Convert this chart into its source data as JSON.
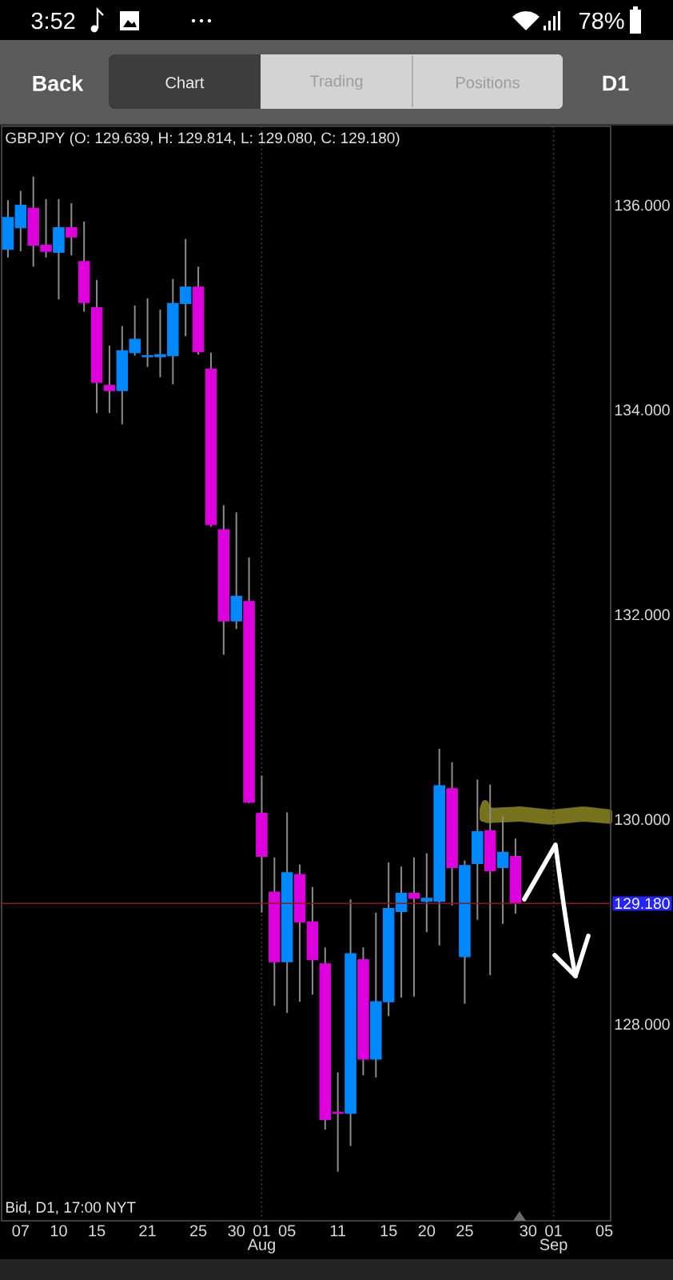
{
  "chart_data": {
    "type": "candlestick",
    "title": "GBPJPY (O: 129.639, H: 129.814, L: 129.080, C: 129.180)",
    "categories": [
      null,
      "07",
      null,
      null,
      "10",
      null,
      null,
      "15",
      null,
      null,
      null,
      "21",
      null,
      null,
      null,
      "25",
      null,
      null,
      "30",
      null,
      "01 Aug",
      null,
      "05",
      null,
      null,
      null,
      "11",
      null,
      null,
      null,
      "15",
      null,
      null,
      "20",
      null,
      null,
      "25",
      null,
      null,
      null,
      null,
      "30",
      null,
      "01 Sep",
      null,
      null,
      null,
      "05"
    ],
    "ohlc": [
      [
        135.57,
        136.05,
        135.49,
        135.88
      ],
      [
        135.78,
        136.14,
        135.55,
        136.0
      ],
      [
        135.97,
        136.28,
        135.4,
        135.61
      ],
      [
        135.61,
        136.06,
        135.49,
        135.55
      ],
      [
        135.54,
        136.06,
        135.08,
        135.78
      ],
      [
        135.78,
        136.02,
        135.51,
        135.69
      ],
      [
        135.45,
        135.84,
        134.96,
        135.05
      ],
      [
        135.0,
        135.27,
        133.97,
        134.27
      ],
      [
        134.24,
        134.63,
        133.97,
        134.19
      ],
      [
        134.19,
        134.82,
        133.86,
        134.58
      ],
      [
        134.56,
        135.02,
        134.53,
        134.69
      ],
      [
        134.52,
        135.09,
        134.42,
        134.53
      ],
      [
        134.52,
        134.98,
        134.32,
        134.54
      ],
      [
        134.53,
        135.28,
        134.25,
        135.04
      ],
      [
        135.04,
        135.67,
        134.72,
        135.2
      ],
      [
        135.2,
        135.4,
        134.54,
        134.57
      ],
      [
        134.4,
        134.56,
        132.86,
        132.88
      ],
      [
        132.83,
        133.07,
        131.61,
        131.94
      ],
      [
        131.94,
        133.0,
        131.86,
        132.18
      ],
      [
        132.13,
        132.56,
        130.16,
        130.17
      ],
      [
        130.06,
        130.43,
        129.09,
        129.64
      ],
      [
        129.29,
        129.63,
        128.18,
        128.61
      ],
      [
        128.61,
        130.07,
        128.11,
        129.48
      ],
      [
        129.46,
        129.56,
        128.22,
        129.0
      ],
      [
        129.0,
        129.34,
        128.29,
        128.63
      ],
      [
        128.59,
        128.75,
        126.97,
        127.07
      ],
      [
        127.14,
        127.53,
        126.56,
        127.13
      ],
      [
        127.13,
        129.22,
        126.81,
        128.69
      ],
      [
        128.63,
        128.75,
        127.5,
        127.66
      ],
      [
        127.66,
        129.09,
        127.48,
        128.22
      ],
      [
        128.22,
        129.58,
        128.08,
        129.13
      ],
      [
        129.1,
        129.54,
        128.26,
        129.28
      ],
      [
        129.28,
        129.63,
        128.27,
        129.23
      ],
      [
        129.2,
        129.67,
        128.9,
        129.23
      ],
      [
        129.2,
        130.69,
        128.77,
        130.33
      ],
      [
        130.3,
        130.56,
        129.16,
        129.53
      ],
      [
        128.66,
        129.6,
        128.2,
        129.55
      ],
      [
        129.57,
        130.39,
        129.02,
        129.88
      ],
      [
        129.89,
        130.34,
        128.48,
        129.5
      ],
      [
        129.53,
        130.03,
        128.98,
        129.68
      ],
      [
        129.639,
        129.814,
        129.08,
        129.18
      ],
      null,
      null,
      null,
      null,
      null,
      null,
      null
    ],
    "colors": [
      "#0088ff",
      "#0088ff",
      "#dd00dd",
      "#dd00dd",
      "#0088ff",
      "#dd00dd",
      "#dd00dd",
      "#dd00dd",
      "#dd00dd",
      "#0088ff",
      "#0088ff",
      "#0088ff",
      "#0088ff",
      "#0088ff",
      "#0088ff",
      "#dd00dd",
      "#dd00dd",
      "#dd00dd",
      "#0088ff",
      "#dd00dd",
      "#dd00dd",
      "#dd00dd",
      "#0088ff",
      "#dd00dd",
      "#dd00dd",
      "#dd00dd",
      "#dd00dd",
      "#0088ff",
      "#dd00dd",
      "#0088ff",
      "#0088ff",
      "#0088ff",
      "#dd00dd",
      "#0088ff",
      "#0088ff",
      "#dd00dd",
      "#0088ff",
      "#0088ff",
      "#dd00dd",
      "#0088ff",
      "#dd00dd",
      null,
      null,
      null,
      null,
      null,
      null,
      null
    ],
    "ylim": [
      126.08,
      136.77
    ],
    "yticks": [
      {
        "value": 128,
        "label": "128.000"
      },
      {
        "value": 130,
        "label": "130.000"
      },
      {
        "value": 132,
        "label": "132.000"
      },
      {
        "value": 134,
        "label": "134.000"
      },
      {
        "value": 136,
        "label": "136.000"
      }
    ],
    "ref_lines": [
      {
        "axis": "x",
        "value": "01 Aug",
        "color": "#4a4a4a",
        "line_style": "dotted"
      },
      {
        "axis": "x",
        "value": "01 Sep",
        "color": "#4a4a4a",
        "line_style": "dotted"
      },
      {
        "axis": "y",
        "value": 129.18,
        "label": "129.180",
        "color": "#8b1a1a"
      }
    ],
    "annotations": [
      "3:52",
      "78%",
      "Back",
      "Chart",
      "Trading",
      "Positions",
      "D1",
      "Bid, D1, 17:00 NYT"
    ]
  }
}
